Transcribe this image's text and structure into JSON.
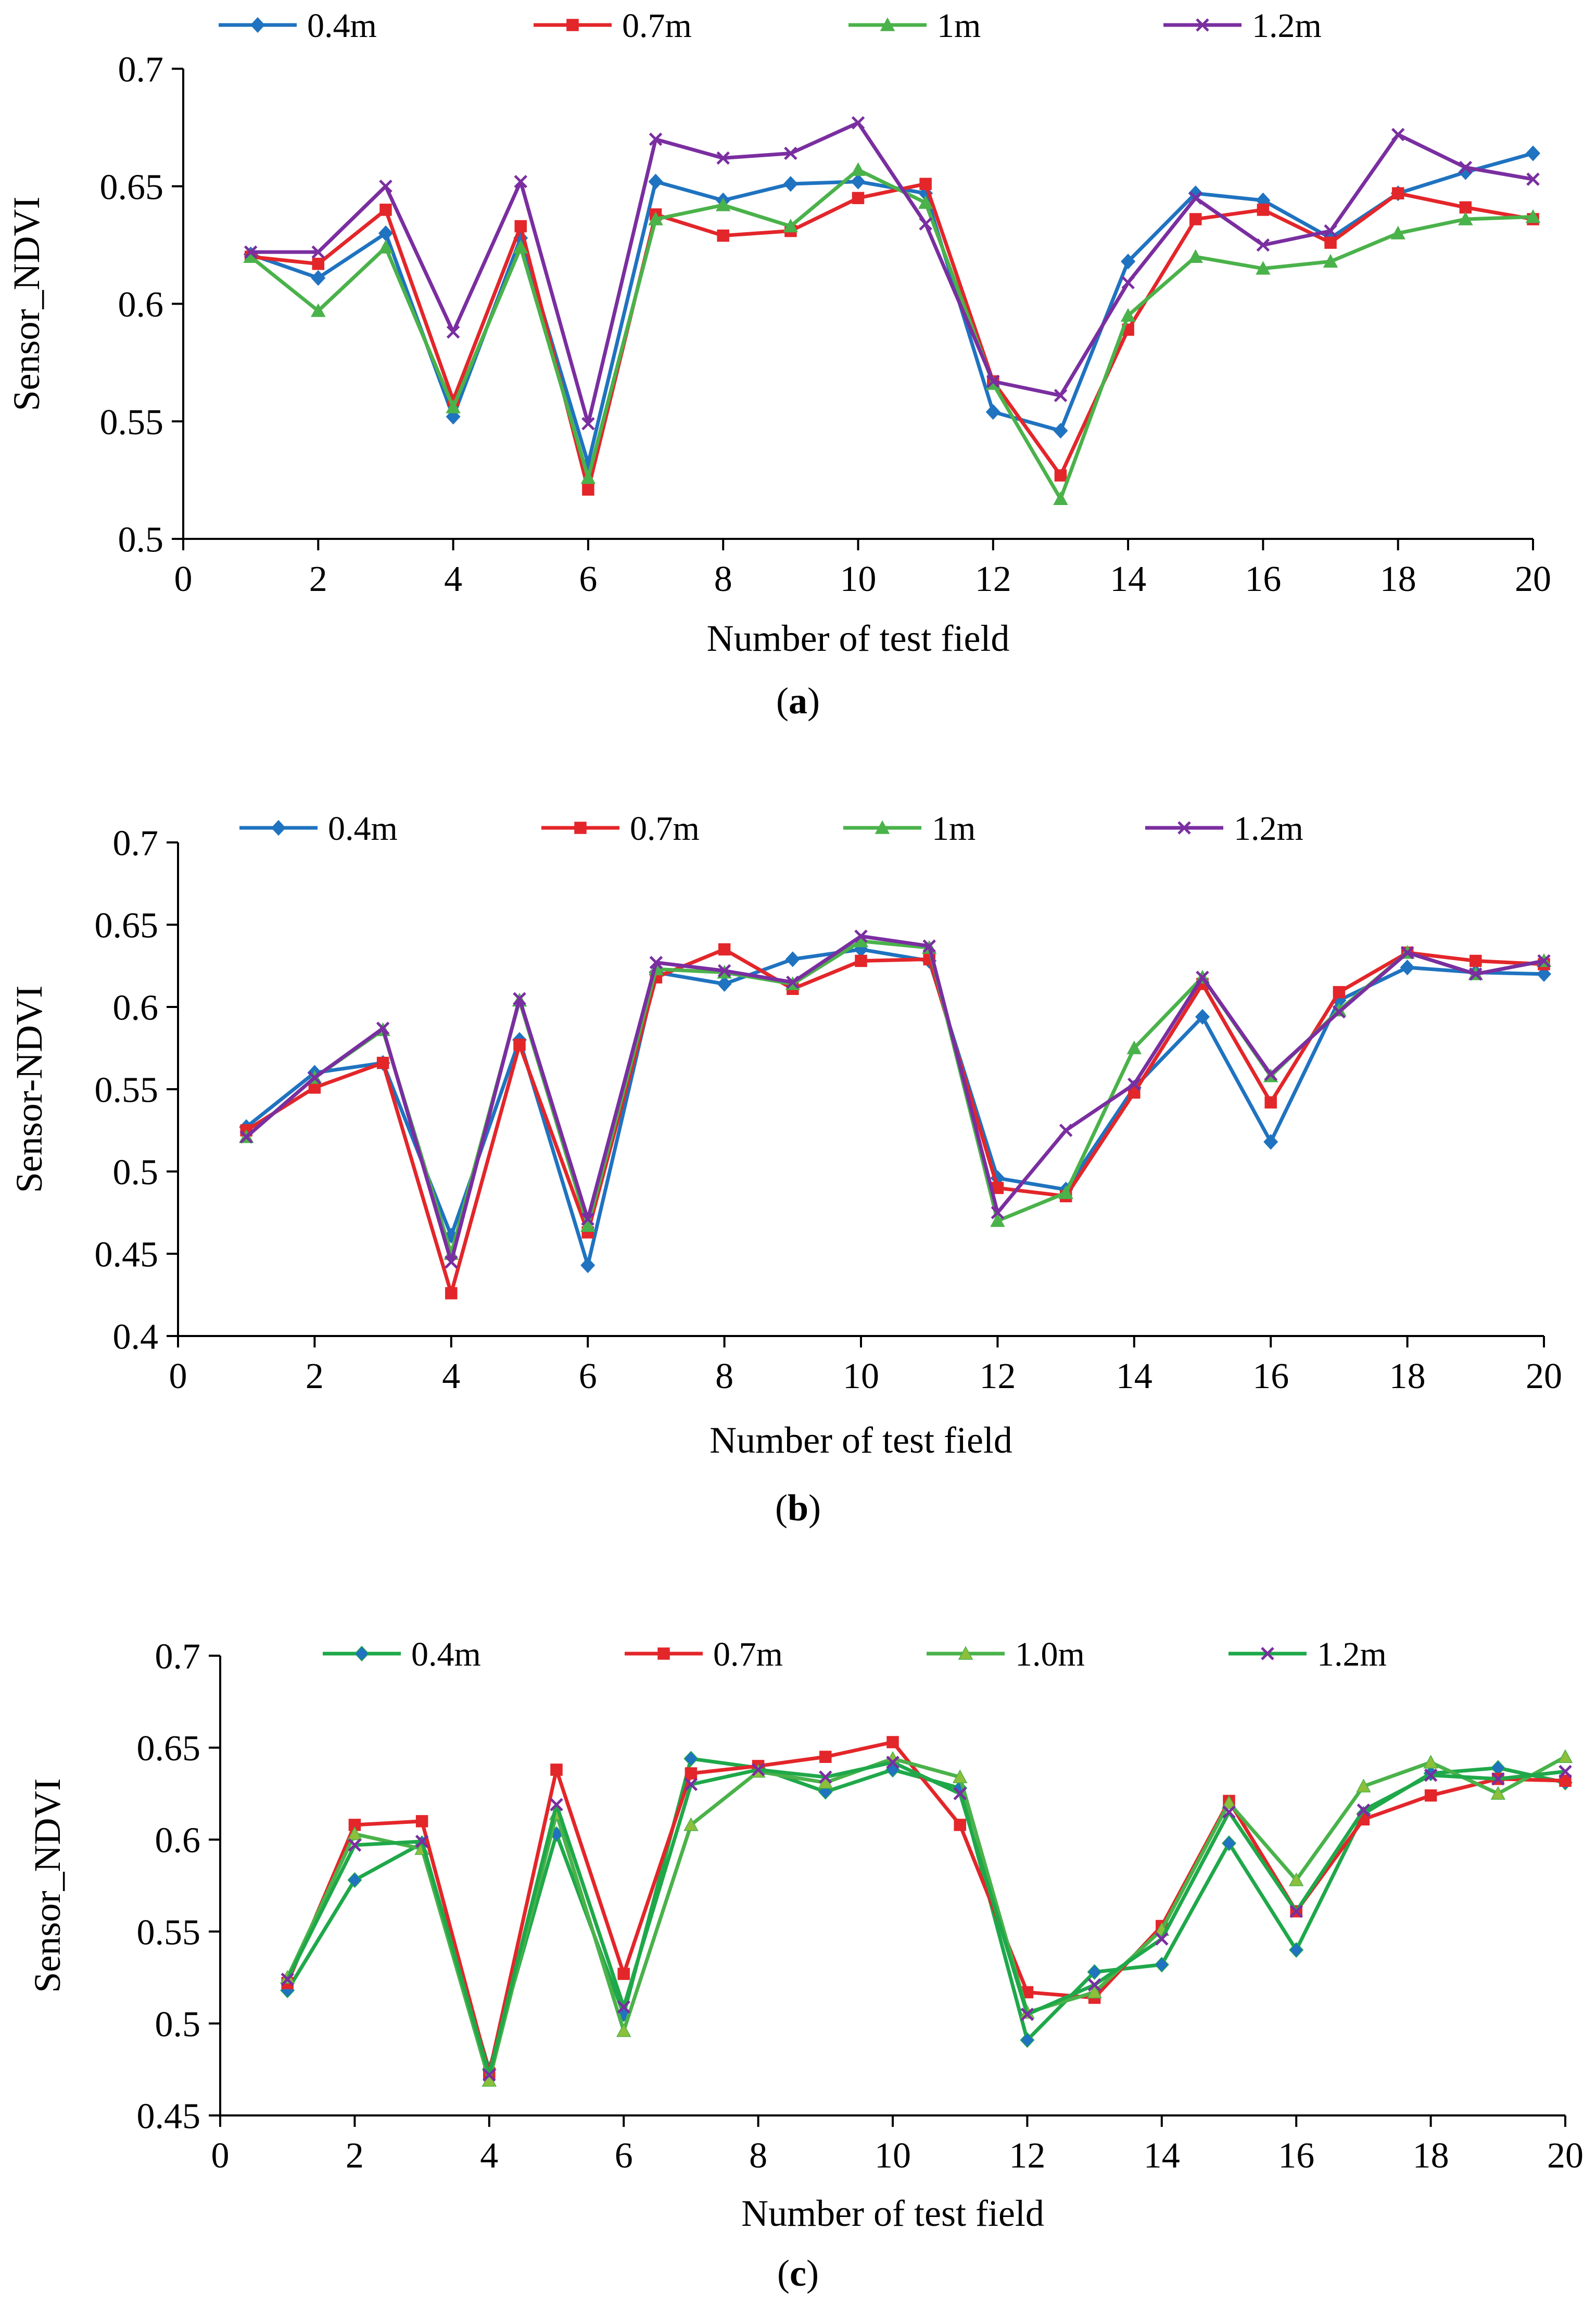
{
  "colors": {
    "a": [
      "#1f73c0",
      "#e3262a",
      "#4ab24a",
      "#7a2ea0"
    ],
    "b": [
      "#1f73c0",
      "#e3262a",
      "#4ab24a",
      "#7a2ea0"
    ],
    "c": [
      "#1fa84a",
      "#e3262a",
      "#4ab24a",
      "#1fa84a"
    ],
    "marker_fill": {
      "c": [
        "#1f73c0",
        "#e3262a",
        "#8cbf3a",
        "#7a2ea0"
      ]
    }
  },
  "chart_data": [
    {
      "id": "a",
      "type": "line",
      "panel_label": "a",
      "xlabel": "Number of test field",
      "ylabel": "Sensor_NDVI",
      "xlim": [
        0,
        20
      ],
      "ylim": [
        0.5,
        0.7
      ],
      "xticks": [
        0,
        2,
        4,
        6,
        8,
        10,
        12,
        14,
        16,
        18,
        20
      ],
      "yticks": [
        "0.5",
        "0.55",
        "0.6",
        "0.65",
        "0.7"
      ],
      "x": [
        1,
        2,
        3,
        4,
        5,
        6,
        7,
        8,
        9,
        10,
        11,
        12,
        13,
        14,
        15,
        16,
        17,
        18,
        19,
        20
      ],
      "legend_position": "top",
      "series": [
        {
          "name": "0.4m",
          "marker": "diamond",
          "values": [
            0.621,
            0.611,
            0.63,
            0.552,
            0.628,
            0.532,
            0.652,
            0.644,
            0.651,
            0.652,
            0.647,
            0.554,
            0.546,
            0.618,
            0.647,
            0.644,
            0.628,
            0.647,
            0.656,
            0.664
          ]
        },
        {
          "name": "0.7m",
          "marker": "square",
          "values": [
            0.62,
            0.617,
            0.64,
            0.559,
            0.633,
            0.521,
            0.638,
            0.629,
            0.631,
            0.645,
            0.651,
            0.567,
            0.527,
            0.589,
            0.636,
            0.64,
            0.626,
            0.647,
            0.641,
            0.636
          ]
        },
        {
          "name": "1m",
          "marker": "triangle",
          "values": [
            0.62,
            0.597,
            0.624,
            0.556,
            0.624,
            0.526,
            0.636,
            0.642,
            0.633,
            0.657,
            0.643,
            0.566,
            0.517,
            0.595,
            0.62,
            0.615,
            0.618,
            0.63,
            0.636,
            0.637
          ]
        },
        {
          "name": "1.2m",
          "marker": "x",
          "values": [
            0.622,
            0.622,
            0.65,
            0.588,
            0.652,
            0.549,
            0.67,
            0.662,
            0.664,
            0.677,
            0.634,
            0.567,
            0.561,
            0.609,
            0.645,
            0.625,
            0.631,
            0.672,
            0.658,
            0.653
          ]
        }
      ]
    },
    {
      "id": "b",
      "type": "line",
      "panel_label": "b",
      "xlabel": "Number of test field",
      "ylabel": "Sensor-NDVI",
      "xlim": [
        0,
        20
      ],
      "ylim": [
        0.4,
        0.7
      ],
      "xticks": [
        0,
        2,
        4,
        6,
        8,
        10,
        12,
        14,
        16,
        18,
        20
      ],
      "yticks": [
        "0.4",
        "0.45",
        "0.5",
        "0.55",
        "0.6",
        "0.65",
        "0.7"
      ],
      "x": [
        1,
        2,
        3,
        4,
        5,
        6,
        7,
        8,
        9,
        10,
        11,
        12,
        13,
        14,
        15,
        16,
        17,
        18,
        19,
        20
      ],
      "legend_position": "top",
      "series": [
        {
          "name": "0.4m",
          "marker": "diamond",
          "values": [
            0.527,
            0.56,
            0.566,
            0.461,
            0.58,
            0.443,
            0.621,
            0.614,
            0.629,
            0.635,
            0.628,
            0.496,
            0.489,
            0.551,
            0.594,
            0.518,
            0.604,
            0.624,
            0.621,
            0.62
          ]
        },
        {
          "name": "0.7m",
          "marker": "square",
          "values": [
            0.525,
            0.551,
            0.566,
            0.426,
            0.577,
            0.463,
            0.618,
            0.635,
            0.611,
            0.628,
            0.629,
            0.49,
            0.485,
            0.548,
            0.614,
            0.542,
            0.609,
            0.633,
            0.628,
            0.626
          ]
        },
        {
          "name": "1m",
          "marker": "triangle",
          "values": [
            0.521,
            0.557,
            0.586,
            0.45,
            0.604,
            0.467,
            0.623,
            0.621,
            0.614,
            0.64,
            0.636,
            0.47,
            0.487,
            0.575,
            0.618,
            0.558,
            0.598,
            0.633,
            0.62,
            0.628
          ]
        },
        {
          "name": "1.2m",
          "marker": "x",
          "values": [
            0.521,
            0.557,
            0.587,
            0.445,
            0.605,
            0.471,
            0.627,
            0.622,
            0.615,
            0.643,
            0.637,
            0.475,
            0.525,
            0.553,
            0.618,
            0.559,
            0.597,
            0.633,
            0.62,
            0.628
          ]
        }
      ]
    },
    {
      "id": "c",
      "type": "line",
      "panel_label": "c",
      "xlabel": "Number of  test field",
      "ylabel": "Sensor_NDVI",
      "xlim": [
        0,
        20
      ],
      "ylim": [
        0.45,
        0.7
      ],
      "xticks": [
        0,
        2,
        4,
        6,
        8,
        10,
        12,
        14,
        16,
        18,
        20
      ],
      "yticks": [
        "0.45",
        "0.5",
        "0.55",
        "0.6",
        "0.65",
        "0.7"
      ],
      "x": [
        1,
        2,
        3,
        4,
        5,
        6,
        7,
        8,
        9,
        10,
        11,
        12,
        13,
        14,
        15,
        16,
        17,
        18,
        19,
        20
      ],
      "legend_position": "top",
      "series": [
        {
          "name": "0.4m",
          "marker": "diamond",
          "values": [
            0.518,
            0.578,
            0.598,
            0.475,
            0.603,
            0.505,
            0.644,
            0.639,
            0.626,
            0.638,
            0.628,
            0.491,
            0.528,
            0.532,
            0.598,
            0.54,
            0.614,
            0.636,
            0.639,
            0.631
          ]
        },
        {
          "name": "0.7m",
          "marker": "square",
          "values": [
            0.522,
            0.608,
            0.61,
            0.473,
            0.638,
            0.527,
            0.636,
            0.64,
            0.645,
            0.653,
            0.608,
            0.517,
            0.514,
            0.553,
            0.621,
            0.561,
            0.611,
            0.624,
            0.633,
            0.632
          ]
        },
        {
          "name": "1.0m",
          "marker": "triangle",
          "values": [
            0.525,
            0.603,
            0.595,
            0.469,
            0.614,
            0.496,
            0.608,
            0.637,
            0.631,
            0.644,
            0.634,
            0.506,
            0.517,
            0.551,
            0.62,
            0.578,
            0.629,
            0.642,
            0.625,
            0.645
          ]
        },
        {
          "name": "1.2m",
          "marker": "x",
          "values": [
            0.524,
            0.597,
            0.599,
            0.472,
            0.619,
            0.509,
            0.63,
            0.638,
            0.634,
            0.642,
            0.625,
            0.505,
            0.521,
            0.546,
            0.615,
            0.561,
            0.616,
            0.635,
            0.633,
            0.637
          ]
        }
      ]
    }
  ]
}
